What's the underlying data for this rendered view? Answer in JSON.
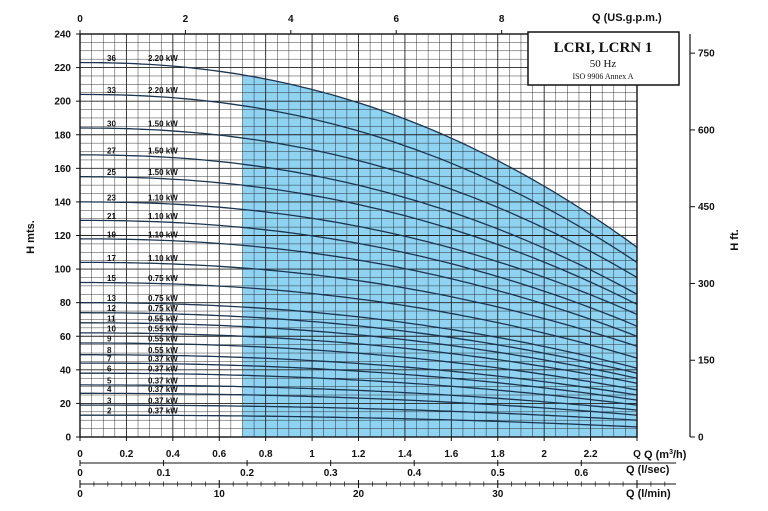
{
  "chart_data": {
    "type": "line",
    "title": "LCRI, LCRN 1",
    "subtitle": "50 Hz",
    "note": "ISO 9906 Annex A",
    "ylabel": "H mts.",
    "ylabel_right": "H ft.",
    "x_label_m3h": "Q (m",
    "x_label_m3h_sup": "3",
    "x_label_m3h_end": "/h)",
    "x_label_usgpm": "Q (US.g.p.m.)",
    "x_label_ls": "Q (l/sec)",
    "x_label_lmin": "Q (l/min)",
    "xlim": [
      0,
      2.4
    ],
    "ylim": [
      0,
      240
    ],
    "grid": true,
    "x_ticks_m3h": [
      {
        "v": 0,
        "label": "0"
      },
      {
        "v": 0.2,
        "label": "0.2"
      },
      {
        "v": 0.4,
        "label": "0.4"
      },
      {
        "v": 0.6,
        "label": "0.6"
      },
      {
        "v": 0.8,
        "label": "0.8"
      },
      {
        "v": 1.0,
        "label": "1"
      },
      {
        "v": 1.2,
        "label": "1.2"
      },
      {
        "v": 1.4,
        "label": "1.4"
      },
      {
        "v": 1.6,
        "label": "1.6"
      },
      {
        "v": 1.8,
        "label": "1.8"
      },
      {
        "v": 2.0,
        "label": "2"
      },
      {
        "v": 2.2,
        "label": "2.2"
      },
      {
        "v": 2.4,
        "label": "Q"
      }
    ],
    "y_ticks": [
      {
        "v": 0,
        "label": "0"
      },
      {
        "v": 20,
        "label": "20"
      },
      {
        "v": 40,
        "label": "40"
      },
      {
        "v": 60,
        "label": "60"
      },
      {
        "v": 80,
        "label": "80"
      },
      {
        "v": 100,
        "label": "100"
      },
      {
        "v": 120,
        "label": "120"
      },
      {
        "v": 140,
        "label": "140"
      },
      {
        "v": 160,
        "label": "160"
      },
      {
        "v": 180,
        "label": "180"
      },
      {
        "v": 200,
        "label": "200"
      },
      {
        "v": 220,
        "label": "220"
      },
      {
        "v": 240,
        "label": "240"
      }
    ],
    "y_ticks_ft": [
      {
        "v": 0,
        "label": "0"
      },
      {
        "v": 150,
        "label": "150"
      },
      {
        "v": 300,
        "label": "300"
      },
      {
        "v": 450,
        "label": "450"
      },
      {
        "v": 600,
        "label": "600"
      },
      {
        "v": 750,
        "label": "750"
      }
    ],
    "top_ticks_usgpm": [
      {
        "v": 0,
        "label": "0"
      },
      {
        "v": 2,
        "label": "2"
      },
      {
        "v": 4,
        "label": "4"
      },
      {
        "v": 6,
        "label": "6"
      },
      {
        "v": 8,
        "label": "8"
      }
    ],
    "ls_ticks": [
      {
        "v": 0,
        "label": "0"
      },
      {
        "v": 0.1,
        "label": "0.1"
      },
      {
        "v": 0.2,
        "label": "0.2"
      },
      {
        "v": 0.3,
        "label": "0.3"
      },
      {
        "v": 0.4,
        "label": "0.4"
      },
      {
        "v": 0.5,
        "label": "0.5"
      },
      {
        "v": 0.6,
        "label": "0.6"
      }
    ],
    "lmin_ticks": [
      {
        "v": 0,
        "label": "0"
      },
      {
        "v": 10,
        "label": "10"
      },
      {
        "v": 20,
        "label": "20"
      },
      {
        "v": 30,
        "label": "30"
      }
    ],
    "shaded_region": {
      "x_start": 0.7,
      "x_end": 2.4
    },
    "curves": [
      {
        "stages": "36",
        "power": "2.20 kW",
        "h0": 223,
        "hend": 113
      },
      {
        "stages": "33",
        "power": "2.20 kW",
        "h0": 204,
        "hend": 104
      },
      {
        "stages": "30",
        "power": "1.50 kW",
        "h0": 184,
        "hend": 95
      },
      {
        "stages": "27",
        "power": "1.50 kW",
        "h0": 168,
        "hend": 85
      },
      {
        "stages": "25",
        "power": "1.50 kW",
        "h0": 155,
        "hend": 79
      },
      {
        "stages": "23",
        "power": "1.10 kW",
        "h0": 140,
        "hend": 73
      },
      {
        "stages": "21",
        "power": "1.10 kW",
        "h0": 129,
        "hend": 66
      },
      {
        "stages": "19",
        "power": "1.10 kW",
        "h0": 118,
        "hend": 60
      },
      {
        "stages": "17",
        "power": "1.10 kW",
        "h0": 104,
        "hend": 54
      },
      {
        "stages": "15",
        "power": "0.75 kW",
        "h0": 92,
        "hend": 47
      },
      {
        "stages": "13",
        "power": "0.75 kW",
        "h0": 80,
        "hend": 41
      },
      {
        "stages": "12",
        "power": "0.75 kW",
        "h0": 74,
        "hend": 38
      },
      {
        "stages": "11",
        "power": "0.55 kW",
        "h0": 68,
        "hend": 35
      },
      {
        "stages": "10",
        "power": "0.55 kW",
        "h0": 62,
        "hend": 32
      },
      {
        "stages": "9",
        "power": "0.55 kW",
        "h0": 56,
        "hend": 28
      },
      {
        "stages": "8",
        "power": "0.55 kW",
        "h0": 49,
        "hend": 25
      },
      {
        "stages": "7",
        "power": "0.37 kW",
        "h0": 44,
        "hend": 22
      },
      {
        "stages": "6",
        "power": "0.37 kW",
        "h0": 38,
        "hend": 19
      },
      {
        "stages": "5",
        "power": "0.37 kW",
        "h0": 31,
        "hend": 16
      },
      {
        "stages": "4",
        "power": "0.37 kW",
        "h0": 26,
        "hend": 13
      },
      {
        "stages": "3",
        "power": "0.37 kW",
        "h0": 19,
        "hend": 10
      },
      {
        "stages": "2",
        "power": "0.37 kW",
        "h0": 13,
        "hend": 6
      }
    ],
    "colors": {
      "fill": "#8fd3f2",
      "curve": "#1b3550",
      "grid": "#222222"
    }
  }
}
